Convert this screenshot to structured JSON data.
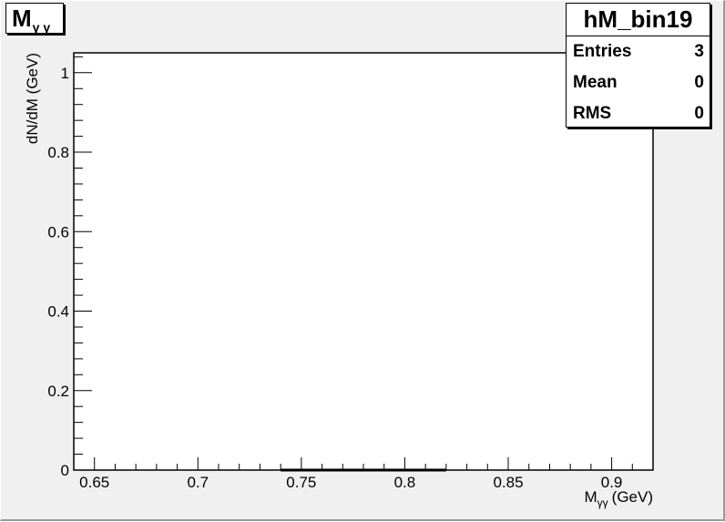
{
  "chart_data": {
    "type": "bar",
    "title": "M",
    "title_sub": "γ γ",
    "xlabel": "M",
    "xlabel_sub": "γγ",
    "xlabel_unit": "(GeV)",
    "ylabel": "dN/dM (GeV)",
    "xlim": [
      0.64,
      0.92
    ],
    "ylim": [
      0,
      1.05
    ],
    "x_ticks": [
      0.65,
      0.7,
      0.75,
      0.8,
      0.85,
      0.9
    ],
    "x_tick_labels": [
      "0.65",
      "0.7",
      "0.75",
      "0.8",
      "0.85",
      "0.9"
    ],
    "y_ticks": [
      0,
      0.2,
      0.4,
      0.6,
      0.8,
      1
    ],
    "y_tick_labels": [
      "0",
      "0.2",
      "0.4",
      "0.6",
      "0.8",
      "1"
    ],
    "bins": [
      {
        "x_low": 0.74,
        "x_high": 0.82,
        "value": 0
      }
    ],
    "stats": {
      "name": "hM_bin19",
      "entries_label": "Entries",
      "entries": "3",
      "mean_label": "Mean",
      "mean": "0",
      "rms_label": "RMS",
      "rms": "0"
    }
  }
}
